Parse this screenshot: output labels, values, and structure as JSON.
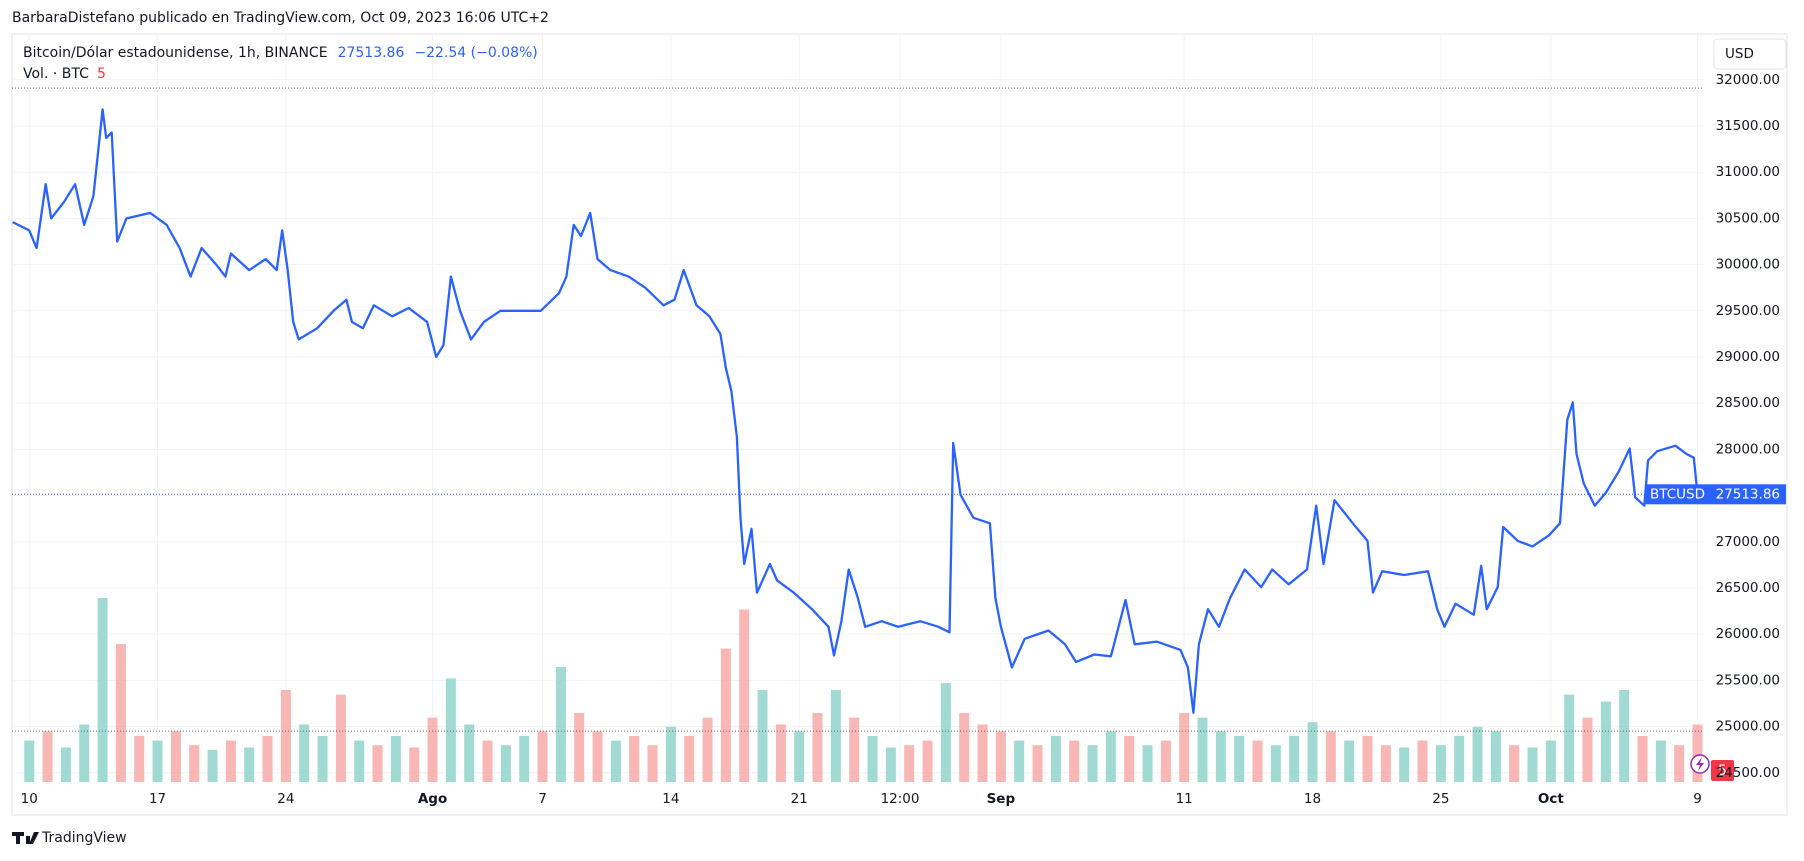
{
  "header": "BarbaraDistefano publicado en TradingView.com, Oct 09, 2023 16:06 UTC+2",
  "footer": "TradingView",
  "chart_data": {
    "type": "line",
    "title": "Bitcoin/Dólar estadounidense, 1h, BINANCE",
    "last_price": 27513.86,
    "change_label": "−22.54 (−0.08%)",
    "volume_label": "Vol. · BTC",
    "volume_count": "5",
    "alert_badge": "5",
    "currency": "USD",
    "xlim": [
      -0.94,
      91.3
    ],
    "xticks": [
      {
        "value": 0,
        "label": "10"
      },
      {
        "value": 7,
        "label": "17"
      },
      {
        "value": 14,
        "label": "24"
      },
      {
        "value": 22,
        "label": "Ago"
      },
      {
        "value": 28,
        "label": "7"
      },
      {
        "value": 35,
        "label": "14"
      },
      {
        "value": 42,
        "label": "21"
      },
      {
        "value": 47.5,
        "label": "12:00"
      },
      {
        "value": 53,
        "label": "Sep"
      },
      {
        "value": 63,
        "label": "11"
      },
      {
        "value": 70,
        "label": "18"
      },
      {
        "value": 77,
        "label": "25"
      },
      {
        "value": 83,
        "label": "Oct"
      },
      {
        "value": 91,
        "label": "9"
      }
    ],
    "ylim": [
      24400,
      32485
    ],
    "yticks": [
      {
        "value": 24500,
        "label": "24500.00"
      },
      {
        "value": 25000,
        "label": "25000.00"
      },
      {
        "value": 25500,
        "label": "25500.00"
      },
      {
        "value": 26000,
        "label": "26000.00"
      },
      {
        "value": 26500,
        "label": "26500.00"
      },
      {
        "value": 27000,
        "label": "27000.00"
      },
      {
        "value": 27500,
        "label": "27500.00"
      },
      {
        "value": 28000,
        "label": "28000.00"
      },
      {
        "value": 28500,
        "label": "28500.00"
      },
      {
        "value": 29000,
        "label": "29000.00"
      },
      {
        "value": 29500,
        "label": "29500.00"
      },
      {
        "value": 30000,
        "label": "30000.00"
      },
      {
        "value": 30500,
        "label": "30500.00"
      },
      {
        "value": 31000,
        "label": "31000.00"
      },
      {
        "value": 31500,
        "label": "31500.00"
      },
      {
        "value": 32000,
        "label": "32000.00"
      }
    ],
    "grid": true,
    "range_lines": [
      31910,
      24950
    ],
    "x": [
      -0.9,
      0,
      0.4,
      0.9,
      1.2,
      1.9,
      2.5,
      3,
      3.5,
      4,
      4.2,
      4.5,
      4.8,
      5.3,
      6.6,
      7.5,
      8.2,
      8.8,
      9.4,
      10.2,
      10.7,
      11,
      12,
      12.9,
      13.5,
      13.8,
      14.1,
      14.4,
      14.7,
      15.7,
      16.6,
      17.3,
      17.6,
      18.2,
      18.8,
      19.8,
      20.7,
      21.7,
      22.2,
      22.6,
      23,
      23.5,
      24.1,
      24.8,
      25.7,
      26.7,
      27.9,
      28.9,
      29.3,
      29.7,
      30.1,
      30.6,
      31,
      31.7,
      32.7,
      33.6,
      34.6,
      35.2,
      35.7,
      36.4,
      37.1,
      37.7,
      38,
      38.3,
      38.6,
      38.8,
      39,
      39.4,
      39.7,
      40.4,
      40.8,
      41.7,
      42.7,
      43.6,
      43.9,
      44.3,
      44.7,
      45.2,
      45.6,
      46.5,
      47.4,
      48.6,
      49.6,
      50.2,
      50.4,
      50.8,
      51.5,
      52.4,
      52.7,
      53,
      53.6,
      54.3,
      55.6,
      56.5,
      57.1,
      58.1,
      59,
      59.8,
      60.3,
      61.5,
      62.8,
      63.2,
      63.5,
      63.8,
      64.3,
      64.9,
      65.5,
      66.3,
      67.2,
      67.8,
      68.7,
      69.7,
      70.2,
      70.6,
      71.2,
      72.2,
      73,
      73.3,
      73.8,
      75,
      76.3,
      76.8,
      77.2,
      77.8,
      78.8,
      79.2,
      79.5,
      80.1,
      80.4,
      81.2,
      82,
      82.9,
      83.5,
      83.9,
      84.2,
      84.4,
      84.8,
      85.4,
      86,
      86.7,
      87.3,
      87.6,
      88.1,
      88.3,
      88.8,
      89.8,
      90.4,
      90.8,
      91
    ],
    "series": [
      {
        "name": "BTCUSD",
        "color": "#2962ff",
        "values": [
          30460,
          30370,
          30180,
          30870,
          30500,
          30680,
          30870,
          30430,
          30740,
          31680,
          31370,
          31430,
          30250,
          30500,
          30560,
          30430,
          30180,
          29870,
          30180,
          30000,
          29870,
          30120,
          29940,
          30060,
          29940,
          30370,
          29940,
          29380,
          29190,
          29310,
          29500,
          29620,
          29380,
          29310,
          29560,
          29440,
          29530,
          29380,
          29000,
          29130,
          29870,
          29500,
          29190,
          29380,
          29500,
          29500,
          29500,
          29690,
          29870,
          30430,
          30310,
          30560,
          30060,
          29940,
          29870,
          29750,
          29560,
          29620,
          29940,
          29560,
          29440,
          29250,
          28880,
          28630,
          28130,
          27260,
          26760,
          27140,
          26450,
          26760,
          26580,
          26450,
          26270,
          26080,
          25770,
          26140,
          26700,
          26390,
          26080,
          26140,
          26080,
          26140,
          26080,
          26020,
          28070,
          27510,
          27260,
          27200,
          26390,
          26080,
          25640,
          25950,
          26040,
          25890,
          25700,
          25780,
          25760,
          26370,
          25890,
          25920,
          25830,
          25640,
          25150,
          25890,
          26270,
          26080,
          26390,
          26700,
          26510,
          26700,
          26540,
          26700,
          27390,
          26760,
          27450,
          27200,
          27010,
          26450,
          26680,
          26640,
          26680,
          26270,
          26080,
          26330,
          26210,
          26740,
          26270,
          26510,
          27160,
          27010,
          26950,
          27070,
          27200,
          28320,
          28510,
          27950,
          27630,
          27390,
          27530,
          27760,
          28010,
          27480,
          27390,
          27880,
          27980,
          28040,
          27950,
          27910,
          27513.86
        ]
      }
    ],
    "volume": {
      "vlim": [
        0,
        100
      ],
      "colors": [
        "#f7a9a7",
        "#8fd3cb"
      ],
      "values": [
        18,
        22,
        15,
        25,
        80,
        60,
        20,
        18,
        22,
        16,
        14,
        18,
        15,
        20,
        40,
        25,
        20,
        38,
        18,
        16,
        20,
        15,
        28,
        45,
        25,
        18,
        16,
        20,
        22,
        50,
        30,
        22,
        18,
        20,
        16,
        24,
        20,
        28,
        58,
        75,
        40,
        25,
        22,
        30,
        40,
        28,
        20,
        15,
        16,
        18,
        43,
        30,
        25,
        22,
        18,
        16,
        20,
        18,
        16,
        22,
        20,
        16,
        18,
        30,
        28,
        22,
        20,
        18,
        16,
        20,
        26,
        22,
        18,
        20,
        16,
        15,
        18,
        16,
        20,
        24,
        22,
        16,
        15,
        18,
        38,
        28,
        35,
        40,
        20,
        18,
        16,
        25
      ],
      "up": [
        1,
        0,
        1,
        1,
        1,
        0,
        0,
        1,
        0,
        0,
        1,
        0,
        1,
        0,
        0,
        1,
        1,
        0,
        1,
        0,
        1,
        0,
        0,
        1,
        1,
        0,
        1,
        1,
        0,
        1,
        0,
        0,
        1,
        0,
        0,
        1,
        0,
        0,
        0,
        0,
        1,
        0,
        1,
        0,
        1,
        0,
        1,
        1,
        0,
        0,
        1,
        0,
        0,
        0,
        1,
        0,
        1,
        0,
        1,
        1,
        0,
        1,
        0,
        0,
        1,
        1,
        1,
        0,
        1,
        1,
        1,
        0,
        1,
        0,
        0,
        1,
        0,
        1,
        1,
        1,
        1,
        0,
        1,
        1,
        1,
        0,
        1,
        1,
        0,
        1,
        0,
        0
      ]
    }
  }
}
